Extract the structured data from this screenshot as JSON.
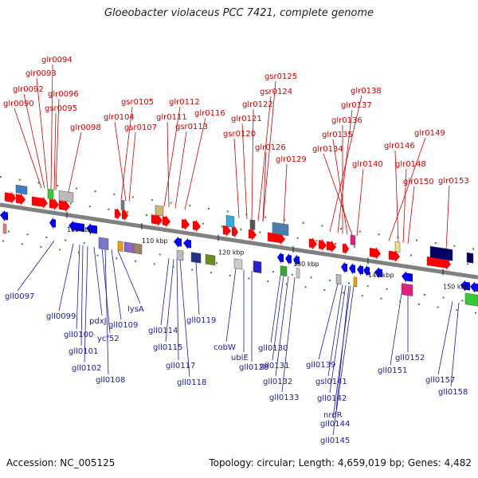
{
  "title": "Gloeobacter violaceus PCC 7421, complete genome",
  "footer": {
    "accession": "Accession: NC_005125",
    "summary": "Topology: circular; Length: 4,659,019 bp; Genes: 4,482"
  },
  "colors": {
    "forward": "#ff0000",
    "reverse": "#0000ff",
    "top_label": "#cc0000",
    "bottom_label": "#1a1aaa",
    "backbone": "#808080"
  },
  "ticks": [
    "100 kbp",
    "110 kbp",
    "120 kbp",
    "130 kbp",
    "140 kbp",
    "150 kbp"
  ],
  "top_labels": [
    "glr0094",
    "glr0093",
    "glr0092",
    "glr0090",
    "glr0096",
    "gsr0095",
    "glr0098",
    "gsr0105",
    "glr0104",
    "gsr0107",
    "glr0112",
    "glr0111",
    "gsr0113",
    "glr0116",
    "gsr0125",
    "gsr0124",
    "glr0122",
    "glr0121",
    "gsr0120",
    "glr0126",
    "glr0129",
    "glr0138",
    "glr0137",
    "glr0136",
    "glr0135",
    "glr0134",
    "glr0140",
    "glr0149",
    "glr0146",
    "glr0148",
    "glr0150",
    "glr0153"
  ],
  "bottom_labels": [
    "gll0097",
    "gll0099",
    "gll0100",
    "pdxJ",
    "gll0101",
    "ycf52",
    "gll0102",
    "gll0109",
    "lysA",
    "gll0108",
    "gll0114",
    "gll0115",
    "gll0119",
    "gll0117",
    "gll0118",
    "cobW",
    "ubiE",
    "gll0128",
    "gll0130",
    "gll0131",
    "gll0132",
    "gll0133",
    "gll0139",
    "gsl0141",
    "gll0142",
    "nrdR",
    "gll0144",
    "gll0145",
    "gll0152",
    "gll0151",
    "gll0157",
    "gll0158"
  ]
}
